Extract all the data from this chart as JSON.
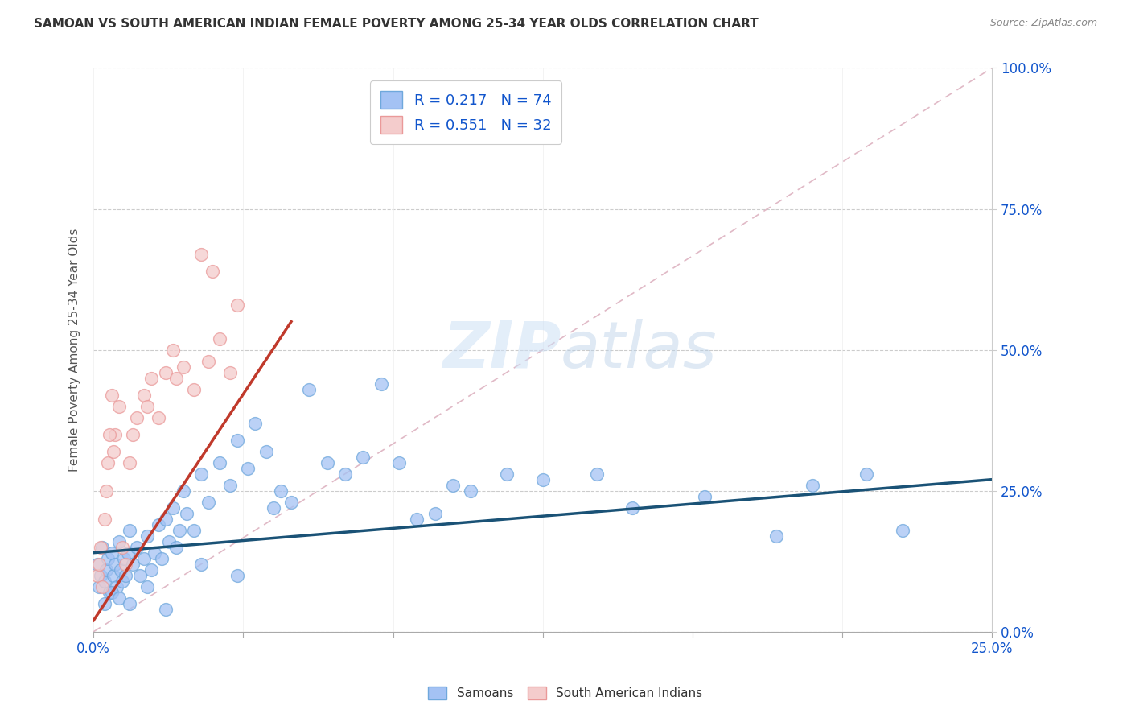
{
  "title": "SAMOAN VS SOUTH AMERICAN INDIAN FEMALE POVERTY AMONG 25-34 YEAR OLDS CORRELATION CHART",
  "source": "Source: ZipAtlas.com",
  "ylabel": "Female Poverty Among 25-34 Year Olds",
  "xlim": [
    0,
    25
  ],
  "ylim": [
    0,
    100
  ],
  "blue_scatter_color": "#a4c2f4",
  "blue_edge_color": "#6fa8dc",
  "pink_scatter_color": "#f4cccc",
  "pink_edge_color": "#ea9999",
  "blue_line_color": "#1a5276",
  "pink_line_color": "#c0392b",
  "ref_line_color": "#cccccc",
  "legend_text_color": "#1155cc",
  "tick_label_color": "#1155cc",
  "R_blue": 0.217,
  "N_blue": 74,
  "R_pink": 0.551,
  "N_pink": 32,
  "blue_scatter_x": [
    0.1,
    0.15,
    0.2,
    0.25,
    0.3,
    0.35,
    0.4,
    0.45,
    0.5,
    0.55,
    0.6,
    0.65,
    0.7,
    0.75,
    0.8,
    0.85,
    0.9,
    0.95,
    1.0,
    1.1,
    1.2,
    1.3,
    1.4,
    1.5,
    1.6,
    1.7,
    1.8,
    1.9,
    2.0,
    2.1,
    2.2,
    2.3,
    2.4,
    2.5,
    2.6,
    2.8,
    3.0,
    3.2,
    3.5,
    3.8,
    4.0,
    4.3,
    4.5,
    4.8,
    5.0,
    5.2,
    5.5,
    6.0,
    6.5,
    7.0,
    7.5,
    8.0,
    8.5,
    9.0,
    9.5,
    10.0,
    10.5,
    11.5,
    12.5,
    14.0,
    15.0,
    17.0,
    19.0,
    20.0,
    21.5,
    22.5,
    0.3,
    0.5,
    0.7,
    1.0,
    1.5,
    2.0,
    3.0,
    4.0
  ],
  "blue_scatter_y": [
    12,
    8,
    10,
    15,
    9,
    11,
    13,
    7,
    14,
    10,
    12,
    8,
    16,
    11,
    9,
    13,
    10,
    14,
    18,
    12,
    15,
    10,
    13,
    17,
    11,
    14,
    19,
    13,
    20,
    16,
    22,
    15,
    18,
    25,
    21,
    18,
    28,
    23,
    30,
    26,
    34,
    29,
    37,
    32,
    22,
    25,
    23,
    43,
    30,
    28,
    31,
    44,
    30,
    20,
    21,
    26,
    25,
    28,
    27,
    28,
    22,
    24,
    17,
    26,
    28,
    18,
    5,
    7,
    6,
    5,
    8,
    4,
    12,
    10
  ],
  "pink_scatter_x": [
    0.1,
    0.15,
    0.2,
    0.25,
    0.3,
    0.35,
    0.4,
    0.5,
    0.6,
    0.7,
    0.8,
    0.9,
    1.0,
    1.2,
    1.4,
    1.6,
    1.8,
    2.0,
    2.2,
    2.5,
    2.8,
    3.0,
    3.3,
    3.5,
    3.8,
    4.0,
    0.45,
    0.55,
    1.1,
    1.5,
    2.3,
    3.2
  ],
  "pink_scatter_y": [
    10,
    12,
    15,
    8,
    20,
    25,
    30,
    42,
    35,
    40,
    15,
    12,
    30,
    38,
    42,
    45,
    38,
    46,
    50,
    47,
    43,
    67,
    64,
    52,
    46,
    58,
    35,
    32,
    35,
    40,
    45,
    48
  ],
  "blue_reg_x0": 0,
  "blue_reg_y0": 14,
  "blue_reg_x1": 25,
  "blue_reg_y1": 27,
  "pink_reg_x0": 0,
  "pink_reg_y0": 2,
  "pink_reg_x1": 5.5,
  "pink_reg_y1": 55
}
